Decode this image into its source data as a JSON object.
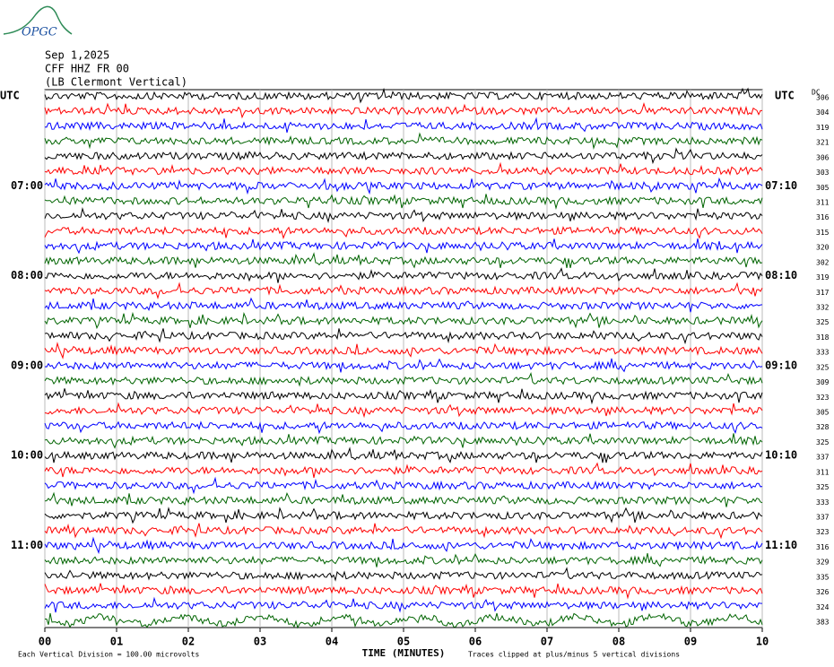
{
  "logo": "OPGC",
  "header": {
    "date": "Sep 1,2025",
    "station": "CFF HHZ FR 00",
    "location": "(LB  Clermont Vertical)"
  },
  "chart_data": {
    "type": "seismogram",
    "xlabel": "TIME (MINUTES)",
    "xlim": [
      0,
      10
    ],
    "xticks": [
      {
        "value": 0,
        "label": "00"
      },
      {
        "value": 1,
        "label": "01"
      },
      {
        "value": 2,
        "label": "02"
      },
      {
        "value": 3,
        "label": "03"
      },
      {
        "value": 4,
        "label": "04"
      },
      {
        "value": 5,
        "label": "05"
      },
      {
        "value": 6,
        "label": "06"
      },
      {
        "value": 7,
        "label": "07"
      },
      {
        "value": 8,
        "label": "08"
      },
      {
        "value": 9,
        "label": "09"
      },
      10
    ],
    "grid": true,
    "left_axis_label": "UTC",
    "right_axis_label": "UTC",
    "dc_label": "DC",
    "trace_colors": [
      "#000000",
      "#ff0000",
      "#0000ff",
      "#006400"
    ],
    "left_labels": [
      null,
      null,
      null,
      null,
      null,
      null,
      "07:00",
      null,
      null,
      null,
      null,
      null,
      "08:00",
      null,
      null,
      null,
      null,
      null,
      "09:00",
      null,
      null,
      null,
      null,
      null,
      "10:00",
      null,
      null,
      null,
      null,
      null,
      "11:00",
      null,
      null,
      null,
      null,
      null
    ],
    "right_labels": [
      null,
      null,
      null,
      null,
      null,
      null,
      "07:10",
      null,
      null,
      null,
      null,
      null,
      "08:10",
      null,
      null,
      null,
      null,
      null,
      "09:10",
      null,
      null,
      null,
      null,
      null,
      "10:10",
      null,
      null,
      null,
      null,
      null,
      "11:10",
      null,
      null,
      null,
      null,
      null
    ],
    "dc_values": [
      306,
      304,
      319,
      321,
      306,
      303,
      305,
      311,
      316,
      315,
      320,
      302,
      319,
      317,
      332,
      325,
      318,
      333,
      325,
      309,
      323,
      305,
      328,
      325,
      337,
      311,
      325,
      333,
      337,
      323,
      316,
      329,
      335,
      326,
      324,
      383
    ]
  },
  "footer": {
    "scale": "Each Vertical Division =  100.00 microvolts",
    "clip": "Traces clipped at plus/minus 5 vertical divisions"
  }
}
